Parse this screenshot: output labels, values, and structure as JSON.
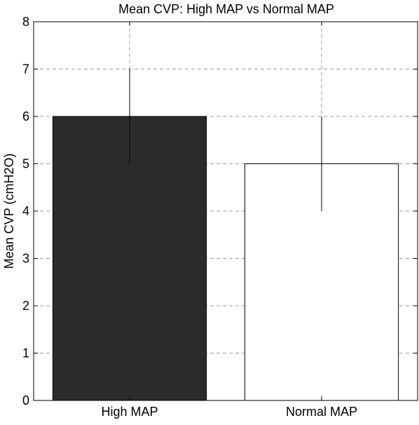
{
  "chart_data": {
    "type": "bar",
    "title": "Mean CVP: High MAP vs Normal MAP",
    "xlabel": "",
    "ylabel": "Mean CVP (cmH2O)",
    "categories": [
      "High MAP",
      "Normal MAP"
    ],
    "values": [
      6,
      5
    ],
    "error": [
      1,
      1
    ],
    "bar_colors": [
      "#2b2b2b",
      "#ffffff"
    ],
    "ylim": [
      0,
      8
    ],
    "yticks": [
      "0",
      "1",
      "2",
      "3",
      "4",
      "5",
      "6",
      "7",
      "8"
    ],
    "grid": true,
    "legend": "none"
  }
}
